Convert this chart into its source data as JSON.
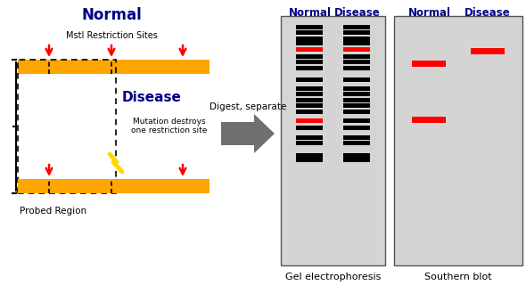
{
  "orange": "#FFA500",
  "red": "#cc0000",
  "black": "#000000",
  "dark_blue": "#00008B",
  "gray_arrow": "#707070",
  "gel_bg": "#d4d4d4",
  "gel_border": "#555555",
  "mstl_text": "MstI Restriction Sites",
  "mutation_text": "Mutation destroys\none restriction site",
  "probed_text": "Probed Region",
  "digest_text": "Digest, separate",
  "gel_text": "Gel electrophoresis",
  "southern_text": "Southern blot",
  "normal_text": "Normal",
  "disease_text": "Disease",
  "normal_bands": [
    [
      287,
      "black"
    ],
    [
      281,
      "black"
    ],
    [
      274,
      "black"
    ],
    [
      269,
      "black"
    ],
    [
      262,
      "red"
    ],
    [
      254,
      "black"
    ],
    [
      248,
      "black"
    ],
    [
      241,
      "black"
    ],
    [
      228,
      "black"
    ],
    [
      218,
      "black"
    ],
    [
      212,
      "black"
    ],
    [
      205,
      "black"
    ],
    [
      199,
      "black"
    ],
    [
      192,
      "black"
    ],
    [
      182,
      "red"
    ],
    [
      174,
      "black"
    ],
    [
      163,
      "black"
    ],
    [
      157,
      "black"
    ],
    [
      143,
      "black"
    ],
    [
      138,
      "black"
    ]
  ],
  "disease_bands": [
    [
      287,
      "black"
    ],
    [
      281,
      "black"
    ],
    [
      274,
      "black"
    ],
    [
      269,
      "black"
    ],
    [
      262,
      "red"
    ],
    [
      254,
      "black"
    ],
    [
      248,
      "black"
    ],
    [
      241,
      "black"
    ],
    [
      228,
      "black"
    ],
    [
      218,
      "black"
    ],
    [
      212,
      "black"
    ],
    [
      205,
      "black"
    ],
    [
      199,
      "black"
    ],
    [
      192,
      "black"
    ],
    [
      182,
      "black"
    ],
    [
      174,
      "black"
    ],
    [
      163,
      "black"
    ],
    [
      157,
      "black"
    ],
    [
      143,
      "black"
    ],
    [
      138,
      "black"
    ]
  ],
  "sb_normal_bands": [
    [
      245,
      "red"
    ],
    [
      182,
      "red"
    ]
  ],
  "sb_disease_bands": [
    [
      259,
      "red"
    ]
  ]
}
